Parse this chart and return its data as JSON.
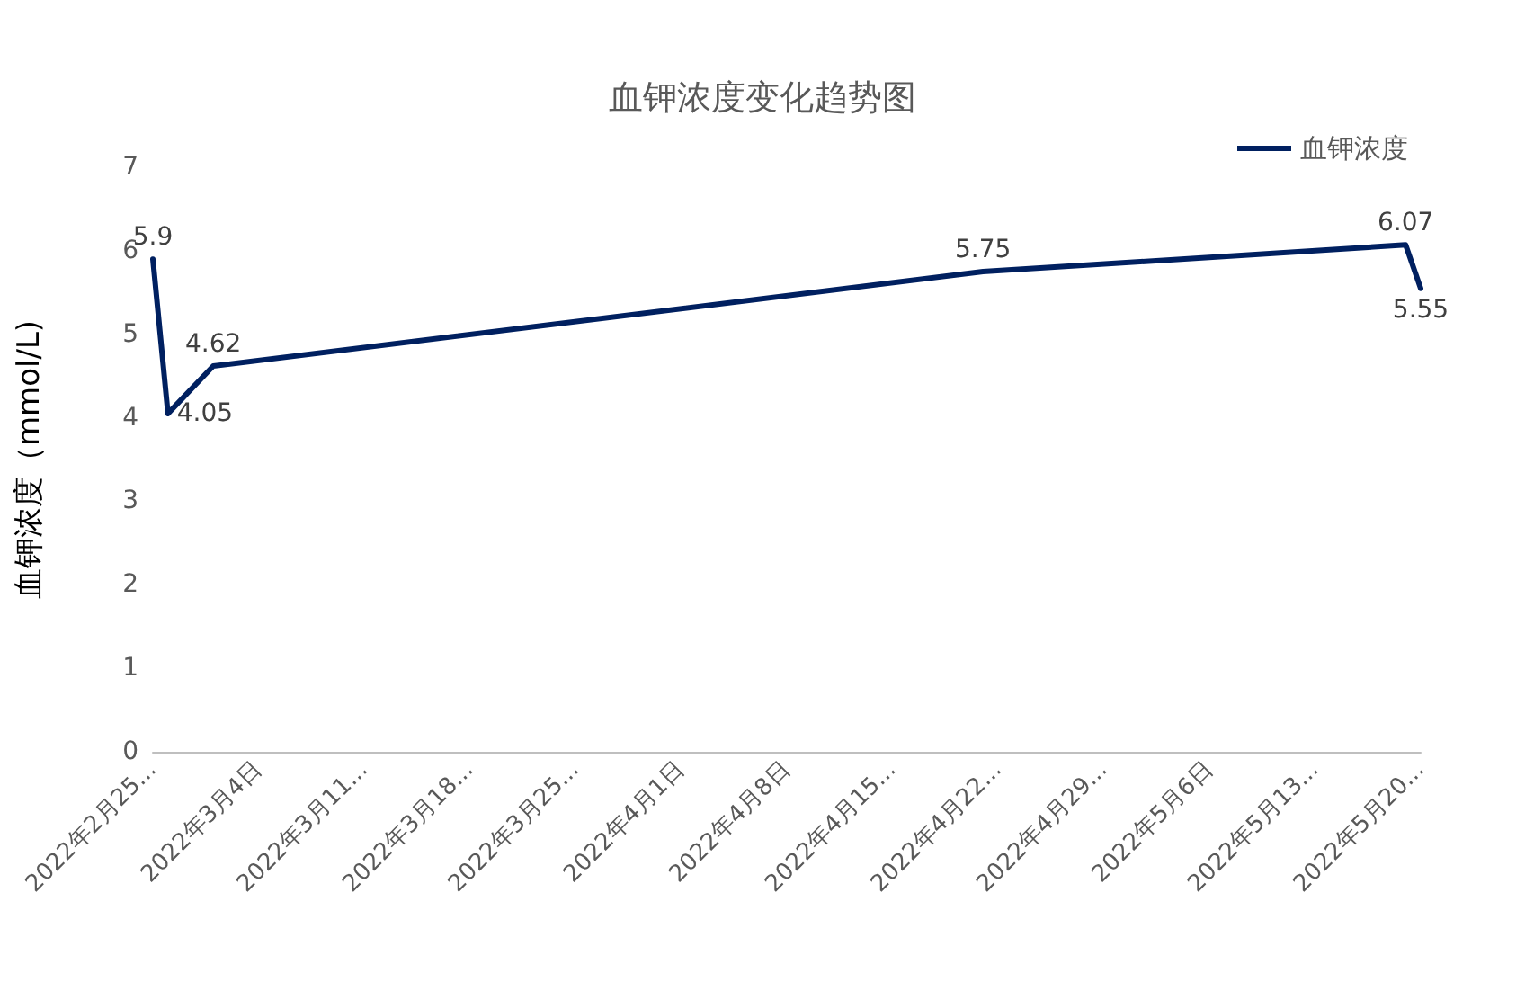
{
  "chart_data": {
    "type": "line",
    "title": "血钾浓度变化趋势图",
    "ylabel": "血钾浓度（mmol/L)",
    "x": [
      "2022-02-25",
      "2022-02-26",
      "2022-03-01",
      "2022-04-21",
      "2022-05-19",
      "2022-05-20"
    ],
    "series": [
      {
        "name": "血钾浓度",
        "color": "#002060",
        "values": [
          5.9,
          4.05,
          4.62,
          5.75,
          6.07,
          5.55
        ]
      }
    ],
    "xlim": [
      "2022-02-25",
      "2022-05-20"
    ],
    "xticks": [
      {
        "value": "2022-02-25",
        "label": "2022年2月25..."
      },
      {
        "value": "2022-03-04",
        "label": "2022年3月4日"
      },
      {
        "value": "2022-03-11",
        "label": "2022年3月11..."
      },
      {
        "value": "2022-03-18",
        "label": "2022年3月18..."
      },
      {
        "value": "2022-03-25",
        "label": "2022年3月25..."
      },
      {
        "value": "2022-04-01",
        "label": "2022年4月1日"
      },
      {
        "value": "2022-04-08",
        "label": "2022年4月8日"
      },
      {
        "value": "2022-04-15",
        "label": "2022年4月15..."
      },
      {
        "value": "2022-04-22",
        "label": "2022年4月22..."
      },
      {
        "value": "2022-04-29",
        "label": "2022年4月29..."
      },
      {
        "value": "2022-05-06",
        "label": "2022年5月6日"
      },
      {
        "value": "2022-05-13",
        "label": "2022年5月13..."
      },
      {
        "value": "2022-05-20",
        "label": "2022年5月20..."
      }
    ],
    "ylim": [
      0,
      7
    ],
    "yticks": [
      0,
      1,
      2,
      3,
      4,
      5,
      6,
      7
    ],
    "grid": false,
    "legend": "top right",
    "marker": "none",
    "line_style": "solid",
    "data_labels": true
  }
}
